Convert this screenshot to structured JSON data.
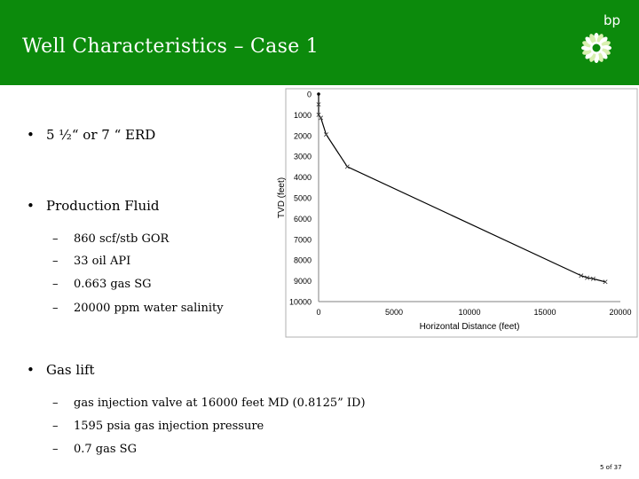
{
  "title": "Well Characteristics – Case 1",
  "logo": {
    "text": "bp",
    "icon": "bp-helios-icon"
  },
  "bullets": [
    {
      "text": "5 ½“  or 7 “ ERD",
      "subs": []
    },
    {
      "text": "Production Fluid",
      "subs": [
        "860 scf/stb GOR",
        "33 oil API",
        "0.663 gas SG",
        "20000 ppm water salinity"
      ]
    },
    {
      "text": "Gas lift",
      "subs": [
        "gas injection valve at 16000 feet MD (0.8125” ID)",
        "1595 psia gas injection pressure",
        "0.7 gas SG"
      ]
    }
  ],
  "page_number": "5 of 37",
  "colors": {
    "header": "#0c8a0c",
    "line": "#000000"
  },
  "chart_data": {
    "type": "line",
    "title": "",
    "xlabel": "Horizontal Distance (feet)",
    "ylabel": "TVD (feet)",
    "xlim": [
      0,
      20000
    ],
    "ylim": [
      0,
      10000
    ],
    "y_inverted": true,
    "grid": false,
    "legend": "none",
    "x_ticks": [
      "0",
      "5000",
      "10000",
      "15000",
      "20000"
    ],
    "y_ticks": [
      "0",
      "1000",
      "2000",
      "3000",
      "4000",
      "5000",
      "6000",
      "7000",
      "8000",
      "9000",
      "10000"
    ],
    "series": [
      {
        "x": [
          0,
          0,
          0,
          150,
          500,
          1900,
          17400,
          17800,
          18200,
          19000
        ],
        "y": [
          0,
          500,
          1000,
          1150,
          1950,
          3500,
          8750,
          8850,
          8900,
          9050
        ]
      }
    ]
  }
}
